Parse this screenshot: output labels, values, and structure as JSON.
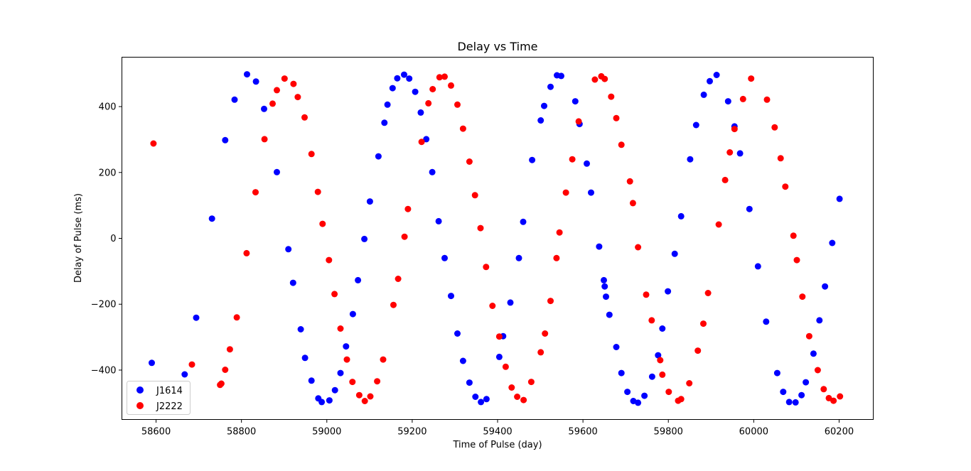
{
  "chart_data": {
    "type": "scatter",
    "title": "Delay vs Time",
    "xlabel": "Time of Pulse (day)",
    "ylabel": "Delay of Pulse (ms)",
    "xlim": [
      58520,
      60280
    ],
    "ylim": [
      -550,
      550
    ],
    "xticks": [
      58600,
      58800,
      59000,
      59200,
      59400,
      59600,
      59800,
      60000,
      60200
    ],
    "yticks": [
      -400,
      -200,
      0,
      200,
      400
    ],
    "ytick_labels": [
      "−400",
      "−200",
      "0",
      "200",
      "400"
    ],
    "grid": false,
    "legend_position": "lower-left",
    "series": [
      {
        "name": "J1614",
        "color": "#0000ff",
        "points": [
          [
            58590,
            -378
          ],
          [
            58667,
            -413
          ],
          [
            58694,
            -241
          ],
          [
            58731,
            60
          ],
          [
            58762,
            298
          ],
          [
            58784,
            421
          ],
          [
            58813,
            498
          ],
          [
            58834,
            476
          ],
          [
            58853,
            393
          ],
          [
            58883,
            201
          ],
          [
            58910,
            -33
          ],
          [
            58921,
            -135
          ],
          [
            58939,
            -276
          ],
          [
            58949,
            -363
          ],
          [
            58964,
            -432
          ],
          [
            58980,
            -486
          ],
          [
            58988,
            -497
          ],
          [
            59006,
            -492
          ],
          [
            59019,
            -461
          ],
          [
            59032,
            -409
          ],
          [
            59045,
            -328
          ],
          [
            59061,
            -230
          ],
          [
            59073,
            -127
          ],
          [
            59088,
            -2
          ],
          [
            59101,
            112
          ],
          [
            59121,
            249
          ],
          [
            59135,
            351
          ],
          [
            59142,
            406
          ],
          [
            59154,
            456
          ],
          [
            59165,
            486
          ],
          [
            59181,
            497
          ],
          [
            59193,
            485
          ],
          [
            59207,
            445
          ],
          [
            59220,
            382
          ],
          [
            59233,
            301
          ],
          [
            59247,
            201
          ],
          [
            59262,
            52
          ],
          [
            59276,
            -60
          ],
          [
            59291,
            -175
          ],
          [
            59306,
            -289
          ],
          [
            59319,
            -372
          ],
          [
            59334,
            -438
          ],
          [
            59348,
            -481
          ],
          [
            59361,
            -497
          ],
          [
            59374,
            -488
          ],
          [
            59404,
            -360
          ],
          [
            59413,
            -297
          ],
          [
            59430,
            -195
          ],
          [
            59450,
            -60
          ],
          [
            59460,
            50
          ],
          [
            59481,
            238
          ],
          [
            59501,
            358
          ],
          [
            59509,
            402
          ],
          [
            59524,
            460
          ],
          [
            59539,
            495
          ],
          [
            59549,
            493
          ],
          [
            59582,
            416
          ],
          [
            59592,
            347
          ],
          [
            59609,
            227
          ],
          [
            59619,
            139
          ],
          [
            59638,
            -25
          ],
          [
            59649,
            -127
          ],
          [
            59651,
            -146
          ],
          [
            59654,
            -177
          ],
          [
            59662,
            -232
          ],
          [
            59678,
            -330
          ],
          [
            59690,
            -409
          ],
          [
            59704,
            -466
          ],
          [
            59718,
            -494
          ],
          [
            59729,
            -499
          ],
          [
            59744,
            -478
          ],
          [
            59762,
            -420
          ],
          [
            59776,
            -355
          ],
          [
            59786,
            -274
          ],
          [
            59799,
            -161
          ],
          [
            59815,
            -47
          ],
          [
            59830,
            67
          ],
          [
            59851,
            240
          ],
          [
            59865,
            344
          ],
          [
            59883,
            436
          ],
          [
            59897,
            477
          ],
          [
            59913,
            496
          ],
          [
            59940,
            416
          ],
          [
            59955,
            340
          ],
          [
            59968,
            258
          ],
          [
            59990,
            89
          ],
          [
            60010,
            -85
          ],
          [
            60029,
            -253
          ],
          [
            60055,
            -409
          ],
          [
            60069,
            -466
          ],
          [
            60083,
            -497
          ],
          [
            60098,
            -498
          ],
          [
            60112,
            -476
          ],
          [
            60122,
            -437
          ],
          [
            60140,
            -350
          ],
          [
            60154,
            -249
          ],
          [
            60167,
            -146
          ],
          [
            60184,
            -14
          ],
          [
            60201,
            120
          ]
        ]
      },
      {
        "name": "J2222",
        "color": "#ff0000",
        "points": [
          [
            58594,
            288
          ],
          [
            58684,
            -383
          ],
          [
            58750,
            -445
          ],
          [
            58753,
            -441
          ],
          [
            58762,
            -399
          ],
          [
            58773,
            -337
          ],
          [
            58789,
            -240
          ],
          [
            58812,
            -45
          ],
          [
            58833,
            140
          ],
          [
            58854,
            301
          ],
          [
            58873,
            409
          ],
          [
            58883,
            450
          ],
          [
            58901,
            485
          ],
          [
            58922,
            469
          ],
          [
            58932,
            429
          ],
          [
            58948,
            367
          ],
          [
            58964,
            256
          ],
          [
            58979,
            141
          ],
          [
            58990,
            44
          ],
          [
            59005,
            -66
          ],
          [
            59018,
            -169
          ],
          [
            59032,
            -274
          ],
          [
            59047,
            -368
          ],
          [
            59060,
            -436
          ],
          [
            59076,
            -476
          ],
          [
            59089,
            -494
          ],
          [
            59102,
            -480
          ],
          [
            59118,
            -434
          ],
          [
            59132,
            -368
          ],
          [
            59156,
            -202
          ],
          [
            59167,
            -123
          ],
          [
            59182,
            5
          ],
          [
            59190,
            89
          ],
          [
            59222,
            293
          ],
          [
            59238,
            410
          ],
          [
            59248,
            453
          ],
          [
            59264,
            489
          ],
          [
            59276,
            491
          ],
          [
            59291,
            464
          ],
          [
            59306,
            406
          ],
          [
            59319,
            333
          ],
          [
            59334,
            233
          ],
          [
            59347,
            131
          ],
          [
            59360,
            31
          ],
          [
            59373,
            -87
          ],
          [
            59388,
            -205
          ],
          [
            59404,
            -298
          ],
          [
            59419,
            -390
          ],
          [
            59433,
            -453
          ],
          [
            59446,
            -481
          ],
          [
            59461,
            -491
          ],
          [
            59479,
            -436
          ],
          [
            59501,
            -346
          ],
          [
            59511,
            -289
          ],
          [
            59524,
            -190
          ],
          [
            59538,
            -60
          ],
          [
            59545,
            18
          ],
          [
            59560,
            139
          ],
          [
            59575,
            240
          ],
          [
            59590,
            355
          ],
          [
            59628,
            482
          ],
          [
            59643,
            492
          ],
          [
            59651,
            484
          ],
          [
            59666,
            430
          ],
          [
            59678,
            365
          ],
          [
            59690,
            284
          ],
          [
            59710,
            173
          ],
          [
            59717,
            107
          ],
          [
            59729,
            -27
          ],
          [
            59748,
            -171
          ],
          [
            59761,
            -249
          ],
          [
            59781,
            -370
          ],
          [
            59786,
            -414
          ],
          [
            59801,
            -466
          ],
          [
            59823,
            -493
          ],
          [
            59830,
            -488
          ],
          [
            59849,
            -440
          ],
          [
            59869,
            -341
          ],
          [
            59882,
            -259
          ],
          [
            59893,
            -166
          ],
          [
            59918,
            42
          ],
          [
            59933,
            177
          ],
          [
            59944,
            261
          ],
          [
            59955,
            332
          ],
          [
            59975,
            423
          ],
          [
            59994,
            485
          ],
          [
            60031,
            421
          ],
          [
            60049,
            337
          ],
          [
            60063,
            243
          ],
          [
            60074,
            157
          ],
          [
            60093,
            8
          ],
          [
            60101,
            -66
          ],
          [
            60114,
            -177
          ],
          [
            60130,
            -297
          ],
          [
            60150,
            -400
          ],
          [
            60164,
            -458
          ],
          [
            60176,
            -485
          ],
          [
            60187,
            -493
          ],
          [
            60202,
            -480
          ]
        ]
      }
    ]
  }
}
